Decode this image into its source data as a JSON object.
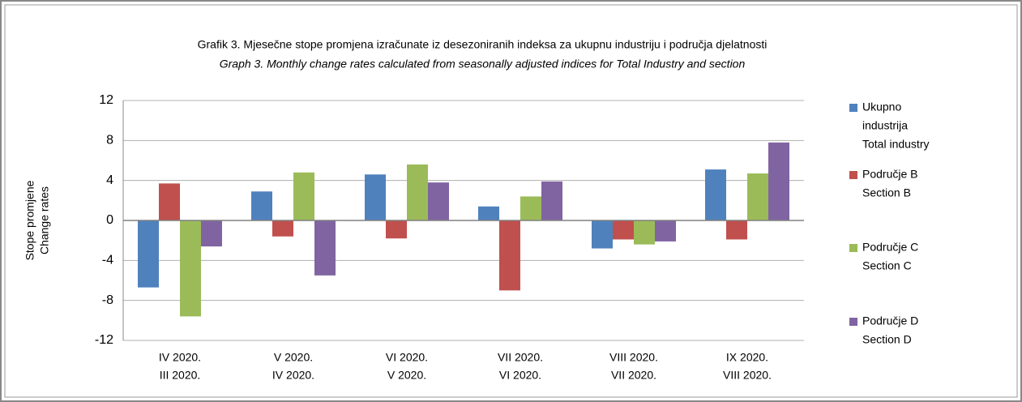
{
  "chart_data": {
    "type": "bar",
    "title": "Grafik 3. Mjesečne stope promjena izračunate iz desezoniranih indeksa za ukupnu industriju i područja djelatnosti",
    "subtitle": "Graph 3. Monthly change rates calculated from seasonally adjusted indices for Total Industry and section",
    "ylabel": [
      "Stope promjene",
      "Change rates"
    ],
    "categories": [
      [
        "IV 2020.",
        "III 2020."
      ],
      [
        "V 2020.",
        "IV 2020."
      ],
      [
        "VI 2020.",
        "V 2020."
      ],
      [
        "VII 2020.",
        "VI 2020."
      ],
      [
        "VIII 2020.",
        "VII 2020."
      ],
      [
        "IX 2020.",
        "VIII 2020."
      ]
    ],
    "series": [
      {
        "name": [
          "Ukupno",
          "industrija",
          "Total industry"
        ],
        "color": "#4f81bd",
        "values": [
          -6.7,
          2.9,
          4.6,
          1.4,
          -2.8,
          5.1
        ]
      },
      {
        "name": [
          "Područje B",
          "Section B"
        ],
        "color": "#c0504d",
        "values": [
          3.7,
          -1.6,
          -1.8,
          -7.0,
          -1.9,
          -1.9
        ]
      },
      {
        "name": [
          "Područje C",
          "Section C"
        ],
        "color": "#9bbb59",
        "values": [
          -9.6,
          4.8,
          5.6,
          2.4,
          -2.4,
          4.7
        ]
      },
      {
        "name": [
          "Područje D",
          "Section D"
        ],
        "color": "#8064a2",
        "values": [
          -2.6,
          -5.5,
          3.8,
          3.9,
          -2.1,
          7.8
        ]
      }
    ],
    "ylim": [
      -12,
      12
    ],
    "yticks": [
      -12,
      -8,
      -4,
      0,
      4,
      8,
      12
    ],
    "grid": true,
    "legend": "right"
  }
}
